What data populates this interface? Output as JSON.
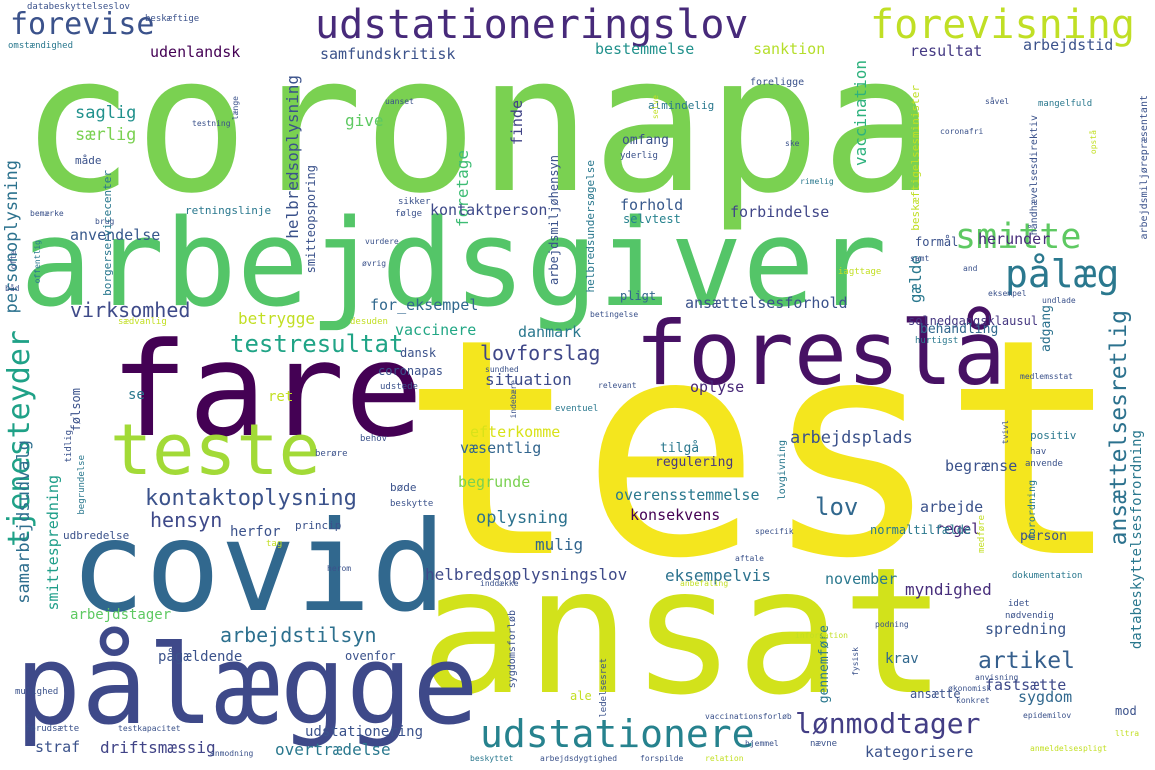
{
  "words": [
    {
      "text": "test",
      "color": "#f4e61e"
    },
    {
      "text": "coronapa",
      "color": "#7ad151"
    },
    {
      "text": "ansat",
      "color": "#d2e21b"
    },
    {
      "text": "arbejdsgiver",
      "color": "#54c568"
    },
    {
      "text": "fare",
      "color": "#440154"
    },
    {
      "text": "covid",
      "color": "#31688e"
    },
    {
      "text": "pålægge",
      "color": "#3e4989"
    },
    {
      "text": "foreslå",
      "color": "#471164"
    },
    {
      "text": "teste",
      "color": "#a2da37"
    },
    {
      "text": "udstationeringslov",
      "color": "#472a7a"
    },
    {
      "text": "forevisning",
      "color": "#c0df25"
    },
    {
      "text": "forevise",
      "color": "#3b528b"
    },
    {
      "text": "smitte",
      "color": "#5ec962"
    },
    {
      "text": "pålæg",
      "color": "#2a788e"
    },
    {
      "text": "udstationere",
      "color": "#26828e"
    },
    {
      "text": "tjenesteyder",
      "color": "#1fa187"
    },
    {
      "text": "testresultat",
      "color": "#20a486"
    },
    {
      "text": "kontaktoplysning",
      "color": "#3b528b"
    },
    {
      "text": "lønmodtager",
      "color": "#433e85"
    },
    {
      "text": "ansættelsesretlig",
      "color": "#2c728e"
    },
    {
      "text": "virksomhed",
      "color": "#3e4a89"
    },
    {
      "text": "lovforslag",
      "color": "#3f4788"
    },
    {
      "text": "arbejdstilsyn",
      "color": "#2d708e"
    },
    {
      "text": "hensyn",
      "color": "#3e4989"
    },
    {
      "text": "artikel",
      "color": "#355f8d"
    },
    {
      "text": "lov",
      "color": "#31688e"
    },
    {
      "text": "udenlandsk",
      "color": "#440154"
    },
    {
      "text": "samfundskritisk",
      "color": "#3b528b"
    },
    {
      "text": "bestemmelse",
      "color": "#21918c"
    },
    {
      "text": "sanktion",
      "color": "#b5de2b"
    },
    {
      "text": "resultat",
      "color": "#443983"
    },
    {
      "text": "arbejdstid",
      "color": "#3b528b"
    },
    {
      "text": "saglig",
      "color": "#21918c"
    },
    {
      "text": "særlig",
      "color": "#7ad151"
    },
    {
      "text": "give",
      "color": "#5ec962"
    },
    {
      "text": "foretage",
      "color": "#3dbc74"
    },
    {
      "text": "finde",
      "color": "#414487"
    },
    {
      "text": "omfang",
      "color": "#3b528b"
    },
    {
      "text": "vaccination",
      "color": "#2db27d"
    },
    {
      "text": "personoplysning",
      "color": "#2c728e"
    },
    {
      "text": "anvendelse",
      "color": "#38598c"
    },
    {
      "text": "kontaktperson",
      "color": "#3e4a89"
    },
    {
      "text": "forhold",
      "color": "#38598c"
    },
    {
      "text": "forbindelse",
      "color": "#404688"
    },
    {
      "text": "herunder",
      "color": "#472c7a"
    },
    {
      "text": "selvtest",
      "color": "#26828e"
    },
    {
      "text": "gælde",
      "color": "#2a788e"
    },
    {
      "text": "for_eksempel",
      "color": "#31688e"
    },
    {
      "text": "betrygge",
      "color": "#c2df23"
    },
    {
      "text": "ansættelsesforhold",
      "color": "#3b528b"
    },
    {
      "text": "solnedgangsklausul",
      "color": "#453781"
    },
    {
      "text": "vaccinere",
      "color": "#22a785"
    },
    {
      "text": "danmark",
      "color": "#2a788e"
    },
    {
      "text": "pligt",
      "color": "#32658e"
    },
    {
      "text": "behandling",
      "color": "#31688e"
    },
    {
      "text": "adgang",
      "color": "#2c728e"
    },
    {
      "text": "situation",
      "color": "#3e4c8a"
    },
    {
      "text": "oplyse",
      "color": "#482878"
    },
    {
      "text": "samarbejdsudvalg",
      "color": "#2e6e8e"
    },
    {
      "text": "smittespredning",
      "color": "#1f9e89"
    },
    {
      "text": "efterkomme",
      "color": "#d8e219"
    },
    {
      "text": "væsentlig",
      "color": "#32658e"
    },
    {
      "text": "arbejdsplads",
      "color": "#3b528b"
    },
    {
      "text": "tilgå",
      "color": "#2a788e"
    },
    {
      "text": "regulering",
      "color": "#453781"
    },
    {
      "text": "begrunde",
      "color": "#7ad151"
    },
    {
      "text": "begrænse",
      "color": "#3b528b"
    },
    {
      "text": "overensstemmelse",
      "color": "#2a788e"
    },
    {
      "text": "konsekvens",
      "color": "#440154"
    },
    {
      "text": "arbejde",
      "color": "#3b528b"
    },
    {
      "text": "regel",
      "color": "#482475"
    },
    {
      "text": "oplysning",
      "color": "#2c728e"
    },
    {
      "text": "mulig",
      "color": "#32658e"
    },
    {
      "text": "helbredsoplysningslov",
      "color": "#3e4a89"
    },
    {
      "text": "eksempelvis",
      "color": "#2c728e"
    },
    {
      "text": "november",
      "color": "#2a788e"
    },
    {
      "text": "myndighed",
      "color": "#472d7b"
    },
    {
      "text": "arbejdstager",
      "color": "#5ec962"
    },
    {
      "text": "pågældende",
      "color": "#3b528b"
    },
    {
      "text": "spredning",
      "color": "#39568c"
    },
    {
      "text": "krav",
      "color": "#31688e"
    },
    {
      "text": "fastsætte",
      "color": "#3e4989"
    },
    {
      "text": "sygdom",
      "color": "#31688e"
    },
    {
      "text": "straf",
      "color": "#3b528b"
    },
    {
      "text": "driftsmæssig",
      "color": "#414487"
    },
    {
      "text": "overtrædelse",
      "color": "#2a788e"
    },
    {
      "text": "udstationering",
      "color": "#3b528b"
    },
    {
      "text": "kategorisere",
      "color": "#3b528b"
    },
    {
      "text": "databeskyttelsesforordning",
      "color": "#2a788e"
    },
    {
      "text": "helbredsoplysning",
      "color": "#3b528b"
    },
    {
      "text": "arbejdsmiljøhensyn",
      "color": "#3b528b"
    },
    {
      "text": "borgerservicecenter",
      "color": "#2a788e"
    },
    {
      "text": "smitteopsporing",
      "color": "#3b528b"
    },
    {
      "text": "helbredsundersøgelse",
      "color": "#2a788e"
    },
    {
      "text": "retningslinje",
      "color": "#2a788e"
    },
    {
      "text": "beskæftigelsesminister",
      "color": "#c0df25"
    },
    {
      "text": "arbejdsmiljørepræsentant",
      "color": "#3b528b"
    },
    {
      "text": "håndhævelsesdirektiv",
      "color": "#3b528b"
    },
    {
      "text": "almindelig",
      "color": "#2a788e"
    },
    {
      "text": "foreligge",
      "color": "#3b528b"
    },
    {
      "text": "mangelfuld",
      "color": "#2a788e"
    },
    {
      "text": "formål",
      "color": "#3b528b"
    },
    {
      "text": "dansk",
      "color": "#3b528b"
    },
    {
      "text": "coronapas",
      "color": "#3b528b"
    },
    {
      "text": "ret",
      "color": "#c2df23"
    },
    {
      "text": "se",
      "color": "#2a788e"
    },
    {
      "text": "herfor",
      "color": "#3b528b"
    },
    {
      "text": "bøde",
      "color": "#3b528b"
    },
    {
      "text": "udbredelse",
      "color": "#3b528b"
    },
    {
      "text": "princip",
      "color": "#3b528b"
    },
    {
      "text": "normaltilfælde",
      "color": "#2a788e"
    },
    {
      "text": "person",
      "color": "#3b528b"
    },
    {
      "text": "positiv",
      "color": "#2a788e"
    },
    {
      "text": "gennemføre",
      "color": "#2a788e"
    },
    {
      "text": "ansætte",
      "color": "#3b528b"
    },
    {
      "text": "mod",
      "color": "#3b528b"
    },
    {
      "text": "ovenfor",
      "color": "#3b528b"
    },
    {
      "text": "databeskyttelseslov",
      "color": "#3b528b"
    },
    {
      "text": "beskæftige",
      "color": "#3b528b"
    },
    {
      "text": "omstændighed",
      "color": "#2a788e"
    },
    {
      "text": "måde",
      "color": "#3b528b"
    },
    {
      "text": "testning",
      "color": "#3b528b"
    },
    {
      "text": "ske",
      "color": "#3b528b"
    },
    {
      "text": "yderlig",
      "color": "#3b528b"
    },
    {
      "text": "coronafri",
      "color": "#3b528b"
    },
    {
      "text": "rimelig",
      "color": "#2a788e"
    },
    {
      "text": "sikker",
      "color": "#3b528b"
    },
    {
      "text": "følge",
      "color": "#3b528b"
    },
    {
      "text": "vurdere",
      "color": "#3b528b"
    },
    {
      "text": "øvrig",
      "color": "#3b528b"
    },
    {
      "text": "iagttage",
      "color": "#c2df23"
    },
    {
      "text": "eksempel",
      "color": "#3b528b"
    },
    {
      "text": "betingelse",
      "color": "#3b528b"
    },
    {
      "text": "undlade",
      "color": "#3b528b"
    },
    {
      "text": "hurtigst",
      "color": "#2a788e"
    },
    {
      "text": "medlemsstat",
      "color": "#3b528b"
    },
    {
      "text": "eventuel",
      "color": "#2a788e"
    },
    {
      "text": "behov",
      "color": "#3b528b"
    },
    {
      "text": "tvivl",
      "color": "#3b528b"
    },
    {
      "text": "hav",
      "color": "#3b528b"
    },
    {
      "text": "anvende",
      "color": "#3b528b"
    },
    {
      "text": "forordning",
      "color": "#2a788e"
    },
    {
      "text": "medføre",
      "color": "#c2df23"
    },
    {
      "text": "specifik",
      "color": "#3b528b"
    },
    {
      "text": "aftale",
      "color": "#3b528b"
    },
    {
      "text": "dokumentation",
      "color": "#2a788e"
    },
    {
      "text": "idet",
      "color": "#3b528b"
    },
    {
      "text": "nødvendig",
      "color": "#3b528b"
    },
    {
      "text": "information",
      "color": "#c2df23"
    },
    {
      "text": "podning",
      "color": "#3b528b"
    },
    {
      "text": "fysisk",
      "color": "#3b528b"
    },
    {
      "text": "anvisning",
      "color": "#3b528b"
    },
    {
      "text": "økonomisk",
      "color": "#3b528b"
    },
    {
      "text": "konkret",
      "color": "#3b528b"
    },
    {
      "text": "epidemilov",
      "color": "#3b528b"
    },
    {
      "text": "vaccinationsforløb",
      "color": "#3b528b"
    },
    {
      "text": "hjemmel",
      "color": "#3b528b"
    },
    {
      "text": "nævne",
      "color": "#3b528b"
    },
    {
      "text": "anmeldelsespligt",
      "color": "#c2df23"
    },
    {
      "text": "lltra",
      "color": "#c2df23"
    },
    {
      "text": "forudsætte",
      "color": "#3b528b"
    },
    {
      "text": "testkapacitet",
      "color": "#3b528b"
    },
    {
      "text": "beskyttet",
      "color": "#2a788e"
    },
    {
      "text": "arbejdsdygtighed",
      "color": "#3b528b"
    },
    {
      "text": "forspilde",
      "color": "#3b528b"
    },
    {
      "text": "relation",
      "color": "#c2df23"
    },
    {
      "text": "anmodning",
      "color": "#3b528b"
    },
    {
      "text": "mulighed",
      "color": "#3b528b"
    },
    {
      "text": "herom",
      "color": "#3b528b"
    },
    {
      "text": "inddække",
      "color": "#3b528b"
    },
    {
      "text": "anbefaling",
      "color": "#c2df23"
    },
    {
      "text": "sygdomsforløb",
      "color": "#3b528b"
    },
    {
      "text": "ledelsesret",
      "color": "#3b528b"
    },
    {
      "text": "ale",
      "color": "#c2df23"
    },
    {
      "text": "lovgivning",
      "color": "#2a788e"
    },
    {
      "text": "tidlig",
      "color": "#3b528b"
    },
    {
      "text": "følsom",
      "color": "#3b528b"
    },
    {
      "text": "udstede",
      "color": "#3b528b"
    },
    {
      "text": "berøre",
      "color": "#3b528b"
    },
    {
      "text": "beskytte",
      "color": "#3b528b"
    },
    {
      "text": "begrundelse",
      "color": "#2a788e"
    },
    {
      "text": "tag",
      "color": "#c2df23"
    },
    {
      "text": "sundhed",
      "color": "#3b528b"
    },
    {
      "text": "indebære",
      "color": "#3b528b"
    },
    {
      "text": "relevant",
      "color": "#3b528b"
    },
    {
      "text": "desuden",
      "color": "#c2df23"
    },
    {
      "text": "sædvanlig",
      "color": "#c2df23"
    },
    {
      "text": "bemærke",
      "color": "#3b528b"
    },
    {
      "text": "brug",
      "color": "#3b528b"
    },
    {
      "text": "ofte",
      "color": "#3b528b"
    },
    {
      "text": "offentlig",
      "color": "#2a788e"
    },
    {
      "text": "båd",
      "color": "#3b528b"
    },
    {
      "text": "uanset",
      "color": "#3b528b"
    },
    {
      "text": "længe",
      "color": "#3b528b"
    },
    {
      "text": "selve",
      "color": "#c2df23"
    },
    {
      "text": "såvel",
      "color": "#3b528b"
    },
    {
      "text": "opstå",
      "color": "#c2df23"
    },
    {
      "text": "samt",
      "color": "#3b528b"
    },
    {
      "text": "and",
      "color": "#3b528b"
    }
  ]
}
